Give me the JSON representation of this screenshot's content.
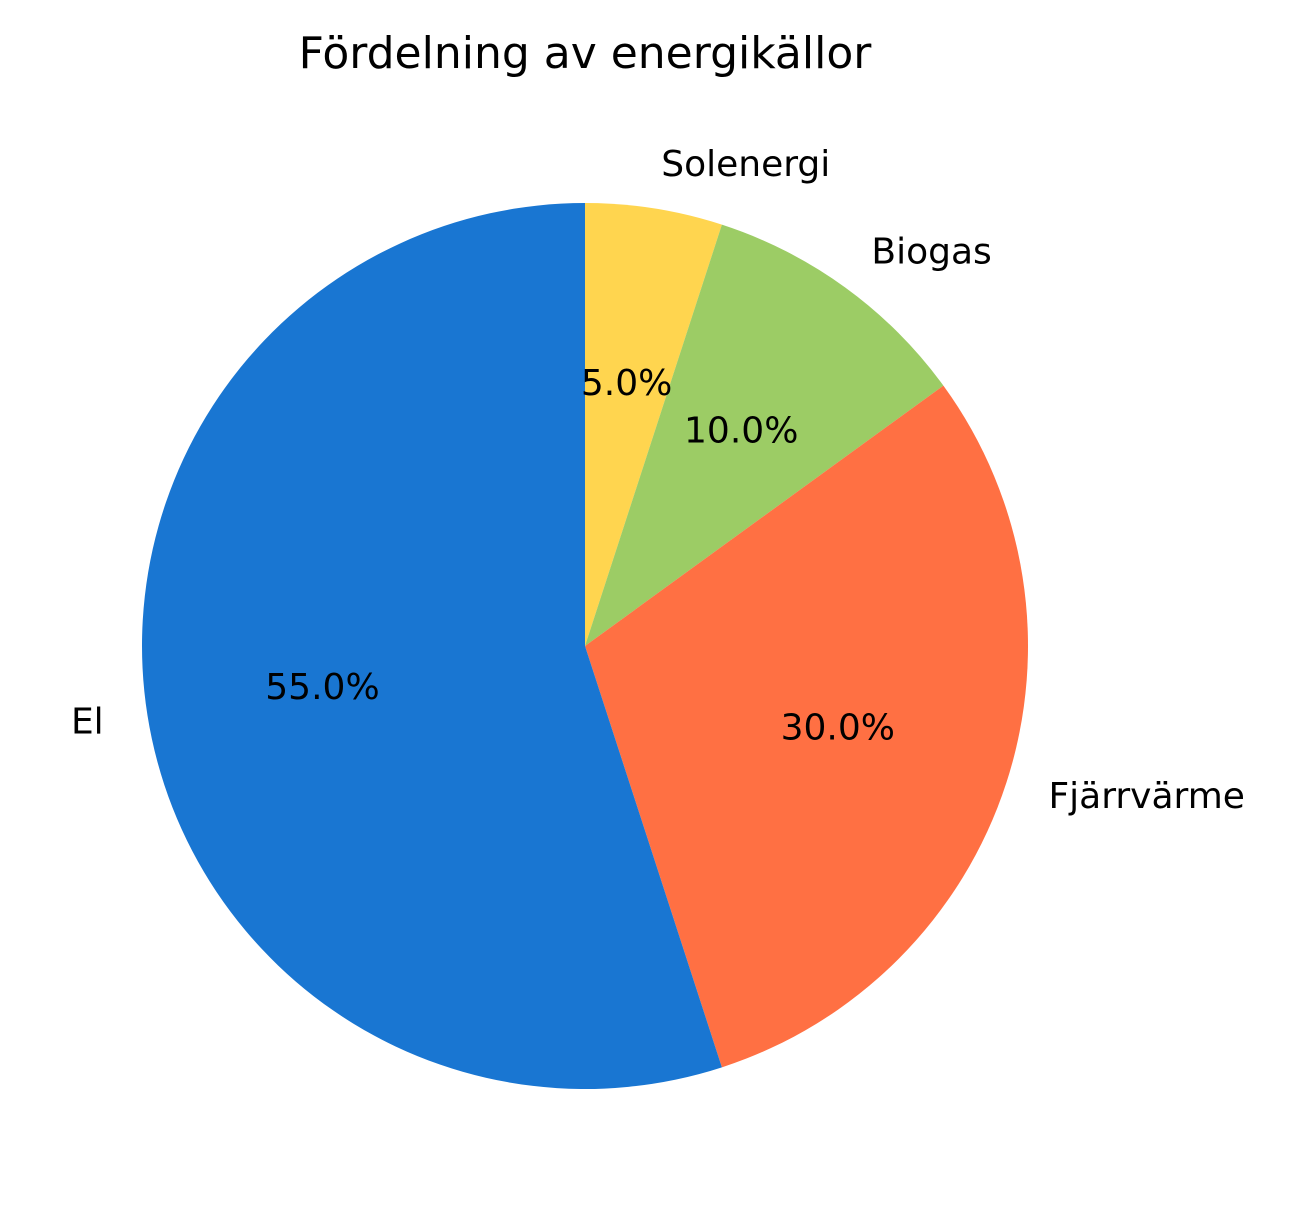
{
  "chart_data": {
    "type": "pie",
    "title": "Fördelning av energikällor",
    "start_angle_deg": 90,
    "direction": "clockwise",
    "slices": [
      {
        "label": "Solenergi",
        "value": 5.0,
        "pct_label": "5.0%",
        "color": "#FFD54F"
      },
      {
        "label": "Biogas",
        "value": 10.0,
        "pct_label": "10.0%",
        "color": "#9CCC65"
      },
      {
        "label": "Fjärrvärme",
        "value": 30.0,
        "pct_label": "30.0%",
        "color": "#FF7043"
      },
      {
        "label": "El",
        "value": 55.0,
        "pct_label": "55.0%",
        "color": "#1976D2"
      }
    ]
  }
}
